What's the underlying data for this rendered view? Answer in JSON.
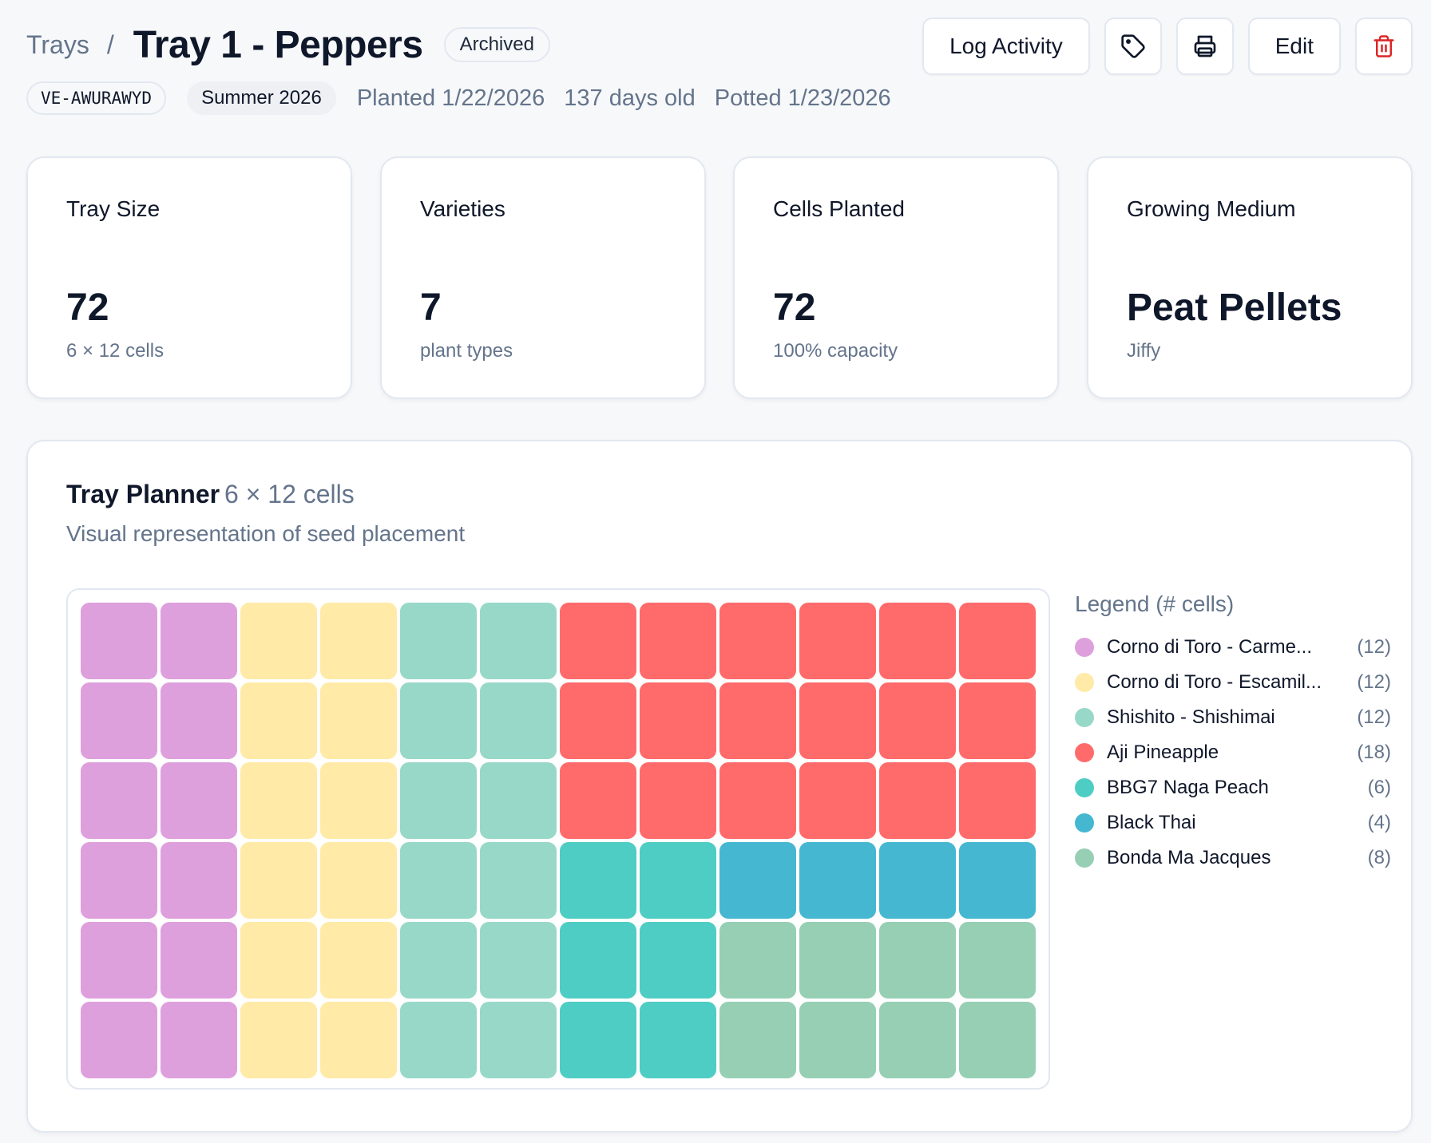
{
  "breadcrumb": {
    "parent": "Trays",
    "separator": "/"
  },
  "title": "Tray 1 - Peppers",
  "status": "Archived",
  "meta": {
    "code": "VE-AWURAWYD",
    "season": "Summer 2026",
    "planted": "Planted 1/22/2026",
    "age": "137 days old",
    "potted": "Potted 1/23/2026"
  },
  "actions": {
    "log_activity": "Log Activity",
    "tag_icon": "tag-icon",
    "print_icon": "printer-icon",
    "edit": "Edit",
    "delete_icon": "trash-icon",
    "delete_color": "#dc2626"
  },
  "stats": [
    {
      "label": "Tray Size",
      "value": "72",
      "sub": "6 × 12 cells"
    },
    {
      "label": "Varieties",
      "value": "7",
      "sub": "plant types"
    },
    {
      "label": "Cells Planted",
      "value": "72",
      "sub": "100% capacity"
    },
    {
      "label": "Growing Medium",
      "value": "Peat Pellets",
      "sub": "Jiffy"
    }
  ],
  "planner": {
    "title": "Tray Planner",
    "dimensions": "6 × 12 cells",
    "subtitle": "Visual representation of seed placement",
    "rows": 6,
    "cols": 12,
    "layout": [
      [
        0,
        0,
        1,
        1,
        2,
        2,
        3,
        3,
        3,
        3,
        3,
        3
      ],
      [
        0,
        0,
        1,
        1,
        2,
        2,
        3,
        3,
        3,
        3,
        3,
        3
      ],
      [
        0,
        0,
        1,
        1,
        2,
        2,
        3,
        3,
        3,
        3,
        3,
        3
      ],
      [
        0,
        0,
        1,
        1,
        2,
        2,
        4,
        4,
        5,
        5,
        5,
        5
      ],
      [
        0,
        0,
        1,
        1,
        2,
        2,
        4,
        4,
        6,
        6,
        6,
        6
      ],
      [
        0,
        0,
        1,
        1,
        2,
        2,
        4,
        4,
        6,
        6,
        6,
        6
      ]
    ]
  },
  "legend": {
    "title": "Legend (# cells)",
    "items": [
      {
        "name": "Corno di Toro - Carme...",
        "count": "(12)",
        "color": "#dda0dd"
      },
      {
        "name": "Corno di Toro - Escamil...",
        "count": "(12)",
        "color": "#ffeaa7"
      },
      {
        "name": "Shishito - Shishimai",
        "count": "(12)",
        "color": "#98d8c8"
      },
      {
        "name": "Aji Pineapple",
        "count": "(18)",
        "color": "#ff6b6b"
      },
      {
        "name": "BBG7 Naga Peach",
        "count": "(6)",
        "color": "#4ecdc4"
      },
      {
        "name": "Black Thai",
        "count": "(4)",
        "color": "#45b7d1"
      },
      {
        "name": "Bonda Ma Jacques",
        "count": "(8)",
        "color": "#96cfb4"
      }
    ]
  }
}
